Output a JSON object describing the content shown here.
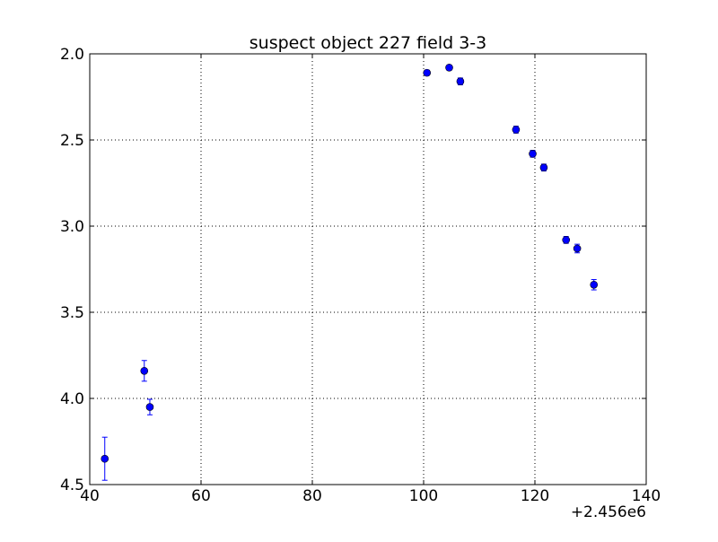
{
  "chart_data": {
    "type": "scatter",
    "title": "suspect object 227 field 3-3",
    "xlabel": "",
    "ylabel": "",
    "x_offset_label": "+2.456e6",
    "xlim": [
      40,
      140
    ],
    "ylim": [
      2.0,
      4.5
    ],
    "y_inverted": true,
    "grid": true,
    "x_ticks": [
      40,
      60,
      80,
      100,
      120,
      140
    ],
    "y_ticks": [
      2.0,
      2.5,
      3.0,
      3.5,
      4.0,
      4.5
    ],
    "x_tick_labels": [
      "40",
      "60",
      "80",
      "100",
      "120",
      "140"
    ],
    "y_tick_labels": [
      "2.0",
      "2.5",
      "3.0",
      "3.5",
      "4.0",
      "4.5"
    ],
    "marker_color": "#0000ff",
    "series": [
      {
        "points": [
          {
            "x": 42.7,
            "y": 4.35,
            "err": 0.125
          },
          {
            "x": 49.8,
            "y": 3.84,
            "err": 0.06
          },
          {
            "x": 50.8,
            "y": 4.05,
            "err": 0.045
          },
          {
            "x": 100.6,
            "y": 2.11,
            "err": 0.015
          },
          {
            "x": 104.6,
            "y": 2.08,
            "err": 0.015
          },
          {
            "x": 106.6,
            "y": 2.16,
            "err": 0.02
          },
          {
            "x": 116.6,
            "y": 2.44,
            "err": 0.02
          },
          {
            "x": 119.6,
            "y": 2.58,
            "err": 0.02
          },
          {
            "x": 121.6,
            "y": 2.66,
            "err": 0.02
          },
          {
            "x": 125.6,
            "y": 3.08,
            "err": 0.02
          },
          {
            "x": 127.6,
            "y": 3.13,
            "err": 0.025
          },
          {
            "x": 130.6,
            "y": 3.34,
            "err": 0.03
          }
        ]
      }
    ]
  }
}
